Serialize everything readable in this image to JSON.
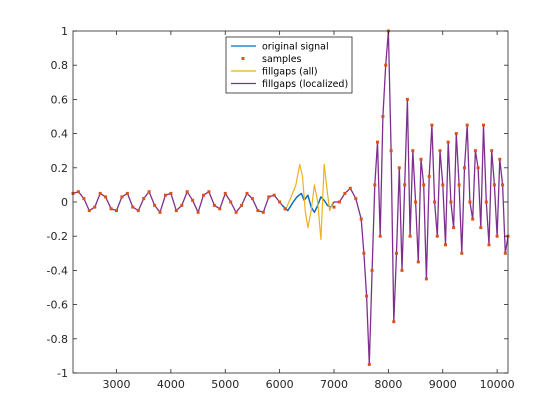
{
  "chart_data": {
    "type": "line",
    "title": "",
    "xlabel": "",
    "ylabel": "",
    "xlim": [
      2200,
      10200
    ],
    "ylim": [
      -1,
      1
    ],
    "grid": false,
    "legend_position": "top-center",
    "x_ticks": [
      3000,
      4000,
      5000,
      6000,
      7000,
      8000,
      9000,
      10000
    ],
    "x_tick_labels": [
      "3000",
      "4000",
      "5000",
      "6000",
      "7000",
      "8000",
      "9000",
      "10000"
    ],
    "y_ticks": [
      -1,
      -0.8,
      -0.6,
      -0.4,
      -0.2,
      0,
      0.2,
      0.4,
      0.6,
      0.8,
      1
    ],
    "y_tick_labels": [
      "-1",
      "-0.8",
      "-0.6",
      "-0.4",
      "-0.2",
      "0",
      "0.2",
      "0.4",
      "0.6",
      "0.8",
      "1"
    ],
    "colors": {
      "original": "#0072BD",
      "samples": "#D95319",
      "fill_all": "#EDB120",
      "fill_localized": "#7E2F8E",
      "axis": "#262626"
    },
    "series": [
      {
        "name": "original signal",
        "kind": "line",
        "x": [
          6050,
          6150,
          6250,
          6320,
          6400,
          6450,
          6520,
          6580,
          6640,
          6700,
          6760,
          6820,
          6880,
          6940,
          7000
        ],
        "y": [
          -0.02,
          -0.05,
          0.0,
          0.03,
          0.05,
          0.01,
          0.04,
          -0.03,
          -0.06,
          -0.02,
          0.03,
          0.01,
          -0.02,
          -0.03,
          0.0
        ]
      },
      {
        "name": "samples",
        "kind": "markers",
        "x": [
          2200,
          2300,
          2400,
          2500,
          2600,
          2700,
          2800,
          2900,
          3000,
          3100,
          3200,
          3300,
          3400,
          3500,
          3600,
          3700,
          3800,
          3900,
          4000,
          4100,
          4200,
          4300,
          4400,
          4500,
          4600,
          4700,
          4800,
          4900,
          5000,
          5100,
          5200,
          5300,
          5400,
          5500,
          5600,
          5700,
          5800,
          5900,
          6000,
          6100,
          7000,
          7100,
          7200,
          7300,
          7400,
          7500,
          7550,
          7600,
          7650,
          7700,
          7750,
          7800,
          7850,
          7900,
          7950,
          8000,
          8050,
          8100,
          8150,
          8200,
          8250,
          8300,
          8350,
          8400,
          8450,
          8500,
          8550,
          8600,
          8650,
          8700,
          8750,
          8800,
          8850,
          8900,
          8950,
          9000,
          9050,
          9100,
          9150,
          9200,
          9250,
          9300,
          9350,
          9400,
          9450,
          9500,
          9550,
          9600,
          9650,
          9700,
          9750,
          9800,
          9850,
          9900,
          9950,
          10000,
          10050,
          10100,
          10150,
          10200
        ],
        "y": [
          0.05,
          0.06,
          0.02,
          -0.05,
          -0.03,
          0.05,
          0.03,
          -0.04,
          -0.05,
          0.03,
          0.05,
          -0.03,
          -0.05,
          0.02,
          0.06,
          -0.02,
          -0.06,
          0.04,
          0.05,
          -0.05,
          -0.02,
          0.06,
          0.01,
          -0.06,
          0.04,
          0.06,
          -0.02,
          -0.04,
          0.05,
          0.0,
          -0.06,
          -0.02,
          0.05,
          0.02,
          -0.05,
          -0.06,
          0.03,
          0.04,
          0.0,
          -0.04,
          -0.03,
          0.0,
          0.05,
          0.08,
          0.02,
          -0.1,
          -0.3,
          -0.55,
          -0.95,
          -0.4,
          0.1,
          0.35,
          -0.2,
          0.5,
          0.8,
          1.0,
          0.3,
          -0.7,
          -0.3,
          0.2,
          -0.4,
          0.1,
          0.6,
          -0.2,
          0.3,
          0.0,
          -0.35,
          0.25,
          0.1,
          -0.45,
          0.15,
          0.45,
          0.0,
          -0.2,
          0.3,
          0.1,
          -0.25,
          0.35,
          0.0,
          -0.15,
          0.4,
          0.1,
          -0.3,
          0.2,
          0.45,
          0.0,
          -0.1,
          0.3,
          0.2,
          -0.15,
          0.45,
          0.0,
          -0.25,
          0.3,
          0.1,
          -0.2,
          0.25,
          0.1,
          -0.3,
          -0.2
        ]
      },
      {
        "name": "fillgaps (all)",
        "kind": "line",
        "x": [
          6100,
          6200,
          6300,
          6370,
          6420,
          6470,
          6520,
          6580,
          6640,
          6700,
          6760,
          6820,
          6870,
          6920,
          6980
        ],
        "y": [
          -0.05,
          0.02,
          0.1,
          0.22,
          0.15,
          -0.05,
          -0.15,
          -0.05,
          0.1,
          0.0,
          -0.22,
          0.22,
          0.08,
          -0.05,
          0.0
        ]
      },
      {
        "name": "fillgaps (localized)",
        "kind": "line",
        "x": [
          2200,
          2300,
          2400,
          2500,
          2600,
          2700,
          2800,
          2900,
          3000,
          3100,
          3200,
          3300,
          3400,
          3500,
          3600,
          3700,
          3800,
          3900,
          4000,
          4100,
          4200,
          4300,
          4400,
          4500,
          4600,
          4700,
          4800,
          4900,
          5000,
          5100,
          5200,
          5300,
          5400,
          5500,
          5600,
          5700,
          5800,
          5900,
          6000,
          6050,
          6150,
          6250,
          6320,
          6400,
          6450,
          6520,
          6580,
          6640,
          6700,
          6760,
          6820,
          6880,
          6940,
          7000,
          7100,
          7200,
          7300,
          7400,
          7500,
          7550,
          7600,
          7650,
          7700,
          7750,
          7800,
          7850,
          7900,
          7950,
          8000,
          8050,
          8100,
          8150,
          8200,
          8250,
          8300,
          8350,
          8400,
          8450,
          8500,
          8550,
          8600,
          8650,
          8700,
          8750,
          8800,
          8850,
          8900,
          8950,
          9000,
          9050,
          9100,
          9150,
          9200,
          9250,
          9300,
          9350,
          9400,
          9450,
          9500,
          9550,
          9600,
          9650,
          9700,
          9750,
          9800,
          9850,
          9900,
          9950,
          10000,
          10050,
          10100,
          10150,
          10200
        ],
        "y": [
          0.05,
          0.06,
          0.02,
          -0.05,
          -0.03,
          0.05,
          0.03,
          -0.04,
          -0.05,
          0.03,
          0.05,
          -0.03,
          -0.05,
          0.02,
          0.06,
          -0.02,
          -0.06,
          0.04,
          0.05,
          -0.05,
          -0.02,
          0.06,
          0.01,
          -0.06,
          0.04,
          0.06,
          -0.02,
          -0.04,
          0.05,
          0.0,
          -0.06,
          -0.02,
          0.05,
          0.02,
          -0.05,
          -0.06,
          0.03,
          0.04,
          0.0,
          -0.02,
          -0.05,
          0.0,
          0.03,
          0.05,
          0.01,
          0.04,
          -0.03,
          -0.06,
          -0.02,
          0.03,
          0.01,
          -0.02,
          -0.03,
          0.0,
          0.0,
          0.05,
          0.08,
          0.02,
          -0.1,
          -0.3,
          -0.55,
          -0.95,
          -0.4,
          0.1,
          0.35,
          -0.2,
          0.5,
          0.8,
          1.0,
          0.3,
          -0.7,
          -0.3,
          0.2,
          -0.4,
          0.1,
          0.6,
          -0.2,
          0.3,
          0.0,
          -0.35,
          0.25,
          0.1,
          -0.45,
          0.15,
          0.45,
          0.0,
          -0.2,
          0.3,
          0.1,
          -0.25,
          0.35,
          0.0,
          -0.15,
          0.4,
          0.1,
          -0.3,
          0.2,
          0.45,
          0.0,
          -0.1,
          0.3,
          0.2,
          -0.15,
          0.45,
          0.0,
          -0.25,
          0.3,
          0.1,
          -0.2,
          0.25,
          0.1,
          -0.3,
          -0.2
        ]
      }
    ]
  }
}
